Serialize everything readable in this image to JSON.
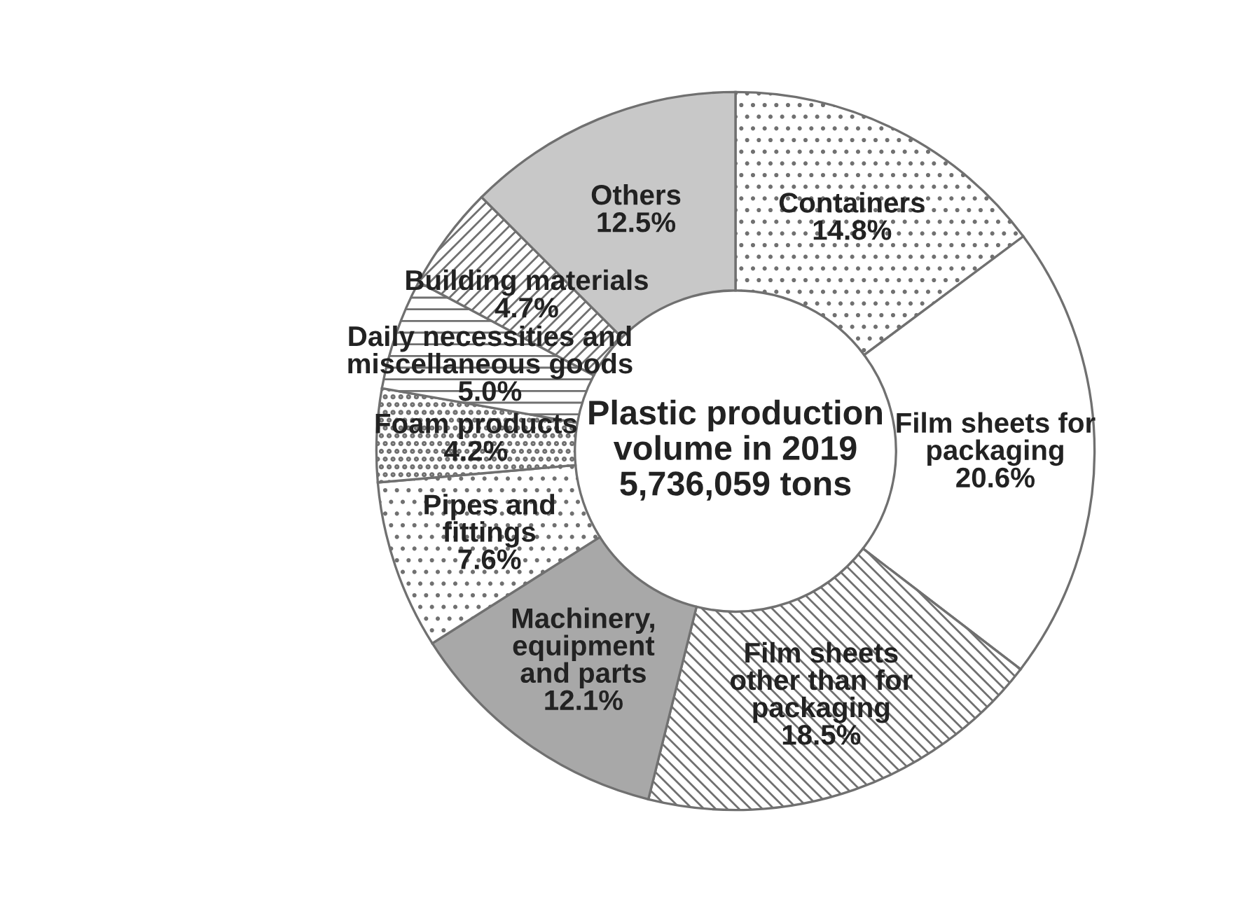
{
  "chart_data": {
    "type": "donut",
    "categories": [
      "Containers",
      "Film sheets for\npackaging",
      "Film sheets\nother than for\npackaging",
      "Machinery,\nequipment\nand parts",
      "Pipes and\nfittings",
      "Foam products",
      "Daily necessities and\nmiscellaneous goods",
      "Building materials",
      "Others"
    ],
    "values": [
      14.8,
      20.6,
      18.5,
      12.1,
      7.6,
      4.2,
      5.0,
      4.7,
      12.5
    ],
    "value_labels": [
      "14.8%",
      "20.6%",
      "18.5%",
      "12.1%",
      "7.6%",
      "4.2%",
      "5.0%",
      "4.7%",
      "12.5%"
    ],
    "colors": [
      "#ffffff",
      "#ffffff",
      "#ffffff",
      "#a8a8a8",
      "#ffffff",
      "#ffffff",
      "#ffffff",
      "#ffffff",
      "#c8c8c8"
    ],
    "annotations": [
      "Plastic production\nvolume in 2019\n5,736,059 tons"
    ],
    "legend": false
  }
}
